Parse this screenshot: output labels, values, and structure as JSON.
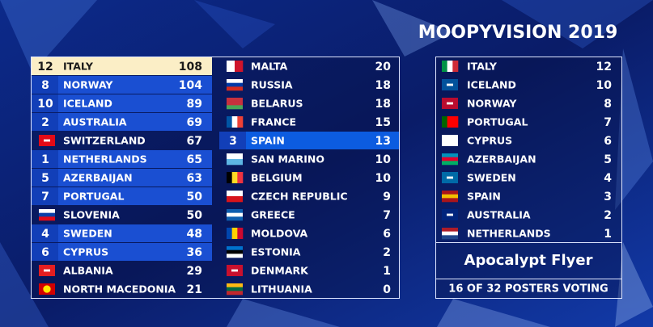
{
  "title": "MOOPYVISION 2019",
  "scoreboard": {
    "rows": [
      {
        "points": 12,
        "country": "ITALY",
        "total": 108
      },
      {
        "points": 8,
        "country": "NORWAY",
        "total": 104
      },
      {
        "points": 10,
        "country": "ICELAND",
        "total": 89
      },
      {
        "points": 2,
        "country": "AUSTRALIA",
        "total": 69
      },
      {
        "country": "SWITZERLAND",
        "total": 67
      },
      {
        "points": 1,
        "country": "NETHERLANDS",
        "total": 65
      },
      {
        "points": 5,
        "country": "AZERBAIJAN",
        "total": 63
      },
      {
        "points": 7,
        "country": "PORTUGAL",
        "total": 50
      },
      {
        "country": "SLOVENIA",
        "total": 50
      },
      {
        "points": 4,
        "country": "SWEDEN",
        "total": 48
      },
      {
        "points": 6,
        "country": "CYPRUS",
        "total": 36
      },
      {
        "country": "ALBANIA",
        "total": 29
      },
      {
        "country": "NORTH MACEDONIA",
        "total": 21
      },
      {
        "country": "MALTA",
        "total": 20
      },
      {
        "country": "RUSSIA",
        "total": 18
      },
      {
        "country": "BELARUS",
        "total": 18
      },
      {
        "country": "FRANCE",
        "total": 15
      },
      {
        "points": 3,
        "country": "SPAIN",
        "total": 13
      },
      {
        "country": "SAN MARINO",
        "total": 10
      },
      {
        "country": "BELGIUM",
        "total": 10
      },
      {
        "country": "CZECH REPUBLIC",
        "total": 9
      },
      {
        "country": "GREECE",
        "total": 7
      },
      {
        "country": "MOLDOVA",
        "total": 6
      },
      {
        "country": "ESTONIA",
        "total": 2
      },
      {
        "country": "DENMARK",
        "total": 1
      },
      {
        "country": "LITHUANIA",
        "total": 0
      }
    ]
  },
  "voting": {
    "votes": [
      {
        "country": "ITALY",
        "points": 12
      },
      {
        "country": "ICELAND",
        "points": 10
      },
      {
        "country": "NORWAY",
        "points": 8
      },
      {
        "country": "PORTUGAL",
        "points": 7
      },
      {
        "country": "CYPRUS",
        "points": 6
      },
      {
        "country": "AZERBAIJAN",
        "points": 5
      },
      {
        "country": "SWEDEN",
        "points": 4
      },
      {
        "country": "SPAIN",
        "points": 3
      },
      {
        "country": "AUSTRALIA",
        "points": 2
      },
      {
        "country": "NETHERLANDS",
        "points": 1
      }
    ],
    "voter": "Apocalypt Flyer",
    "footer": "16 OF 32 POSTERS VOTING"
  }
}
